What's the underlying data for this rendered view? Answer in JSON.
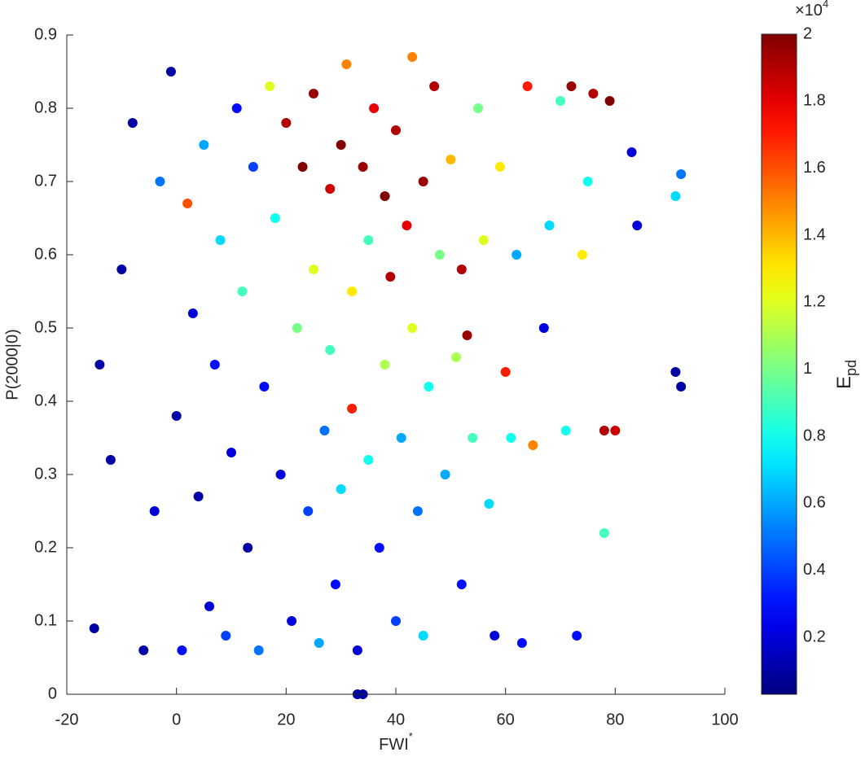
{
  "chart_data": {
    "type": "scatter",
    "xlabel": {
      "text": "FWI",
      "superscript": "*"
    },
    "ylabel": "P(2000|0)",
    "colorbar": {
      "label": {
        "text": "E",
        "subscript": "pd"
      },
      "multiplier": {
        "text": "×10",
        "superscript": "4"
      },
      "colormap": "jet",
      "clim": [
        0.03,
        2
      ],
      "ticks": [
        0.2,
        0.4,
        0.6,
        0.8,
        1,
        1.2,
        1.4,
        1.6,
        1.8,
        2
      ]
    },
    "xlim": [
      -20,
      100
    ],
    "xticks": [
      -20,
      0,
      20,
      40,
      60,
      80,
      100
    ],
    "ylim": [
      0,
      0.9
    ],
    "yticks": [
      0,
      0.1,
      0.2,
      0.3,
      0.4,
      0.5,
      0.6,
      0.7,
      0.8,
      0.9
    ],
    "x": [
      -15,
      -14,
      -12,
      -10,
      -8,
      -6,
      -4,
      -3,
      -1,
      0,
      1,
      2,
      3,
      4,
      5,
      6,
      7,
      8,
      9,
      10,
      11,
      12,
      13,
      14,
      15,
      16,
      17,
      18,
      19,
      20,
      21,
      22,
      23,
      24,
      25,
      25,
      26,
      27,
      28,
      28,
      29,
      30,
      30,
      31,
      32,
      32,
      33,
      33,
      34,
      34,
      35,
      35,
      36,
      37,
      38,
      38,
      39,
      40,
      40,
      41,
      42,
      43,
      43,
      44,
      45,
      45,
      46,
      47,
      48,
      49,
      50,
      51,
      52,
      52,
      53,
      54,
      55,
      56,
      57,
      58,
      59,
      60,
      61,
      62,
      63,
      64,
      65,
      67,
      68,
      70,
      71,
      72,
      73,
      74,
      75,
      76,
      78,
      78,
      79,
      80,
      83,
      84,
      91,
      92,
      91,
      92
    ],
    "y": [
      0.09,
      0.45,
      0.32,
      0.58,
      0.78,
      0.06,
      0.25,
      0.7,
      0.85,
      0.38,
      0.06,
      0.67,
      0.52,
      0.27,
      0.75,
      0.12,
      0.45,
      0.62,
      0.08,
      0.33,
      0.8,
      0.55,
      0.2,
      0.72,
      0.06,
      0.42,
      0.83,
      0.65,
      0.3,
      0.78,
      0.1,
      0.5,
      0.72,
      0.25,
      0.82,
      0.58,
      0.07,
      0.36,
      0.69,
      0.47,
      0.15,
      0.75,
      0.28,
      0.86,
      0.55,
      0.39,
      0.06,
      0,
      0,
      0.72,
      0.62,
      0.32,
      0.8,
      0.2,
      0.45,
      0.68,
      0.57,
      0.1,
      0.77,
      0.35,
      0.64,
      0.87,
      0.5,
      0.25,
      0.7,
      0.08,
      0.42,
      0.83,
      0.6,
      0.3,
      0.73,
      0.46,
      0.58,
      0.15,
      0.49,
      0.35,
      0.8,
      0.62,
      0.26,
      0.08,
      0.72,
      0.44,
      0.35,
      0.6,
      0.07,
      0.83,
      0.34,
      0.5,
      0.64,
      0.81,
      0.36,
      0.83,
      0.08,
      0.6,
      0.7,
      0.82,
      0.36,
      0.22,
      0.81,
      0.36,
      0.74,
      0.64,
      0.44,
      0.42,
      0.68,
      0.71
    ],
    "c": [
      0.1,
      0.1,
      0.1,
      0.1,
      0.1,
      0.1,
      0.2,
      0.5,
      0.1,
      0.1,
      0.3,
      1.6,
      0.2,
      0.1,
      0.6,
      0.2,
      0.3,
      0.7,
      0.4,
      0.2,
      0.3,
      0.9,
      0.1,
      0.4,
      0.5,
      0.3,
      1.2,
      0.8,
      0.2,
      1.9,
      0.2,
      1,
      2,
      0.4,
      1.95,
      1.2,
      0.6,
      0.5,
      1.85,
      0.9,
      0.3,
      2,
      0.7,
      1.5,
      1.3,
      1.7,
      0.2,
      0.1,
      0.1,
      1.95,
      0.9,
      0.8,
      1.8,
      0.3,
      1.1,
      2,
      1.9,
      0.4,
      1.9,
      0.6,
      1.8,
      1.5,
      1.2,
      0.5,
      1.95,
      0.7,
      0.8,
      1.9,
      1,
      0.6,
      1.4,
      1.1,
      1.9,
      0.3,
      1.95,
      0.9,
      1,
      1.2,
      0.7,
      0.2,
      1.3,
      1.7,
      0.8,
      0.6,
      0.3,
      1.7,
      1.5,
      0.2,
      0.7,
      0.9,
      0.8,
      1.95,
      0.3,
      1.3,
      0.8,
      1.9,
      1.9,
      0.9,
      2,
      1.85,
      0.2,
      0.2,
      0.1,
      0.1,
      0.7,
      0.5
    ]
  }
}
